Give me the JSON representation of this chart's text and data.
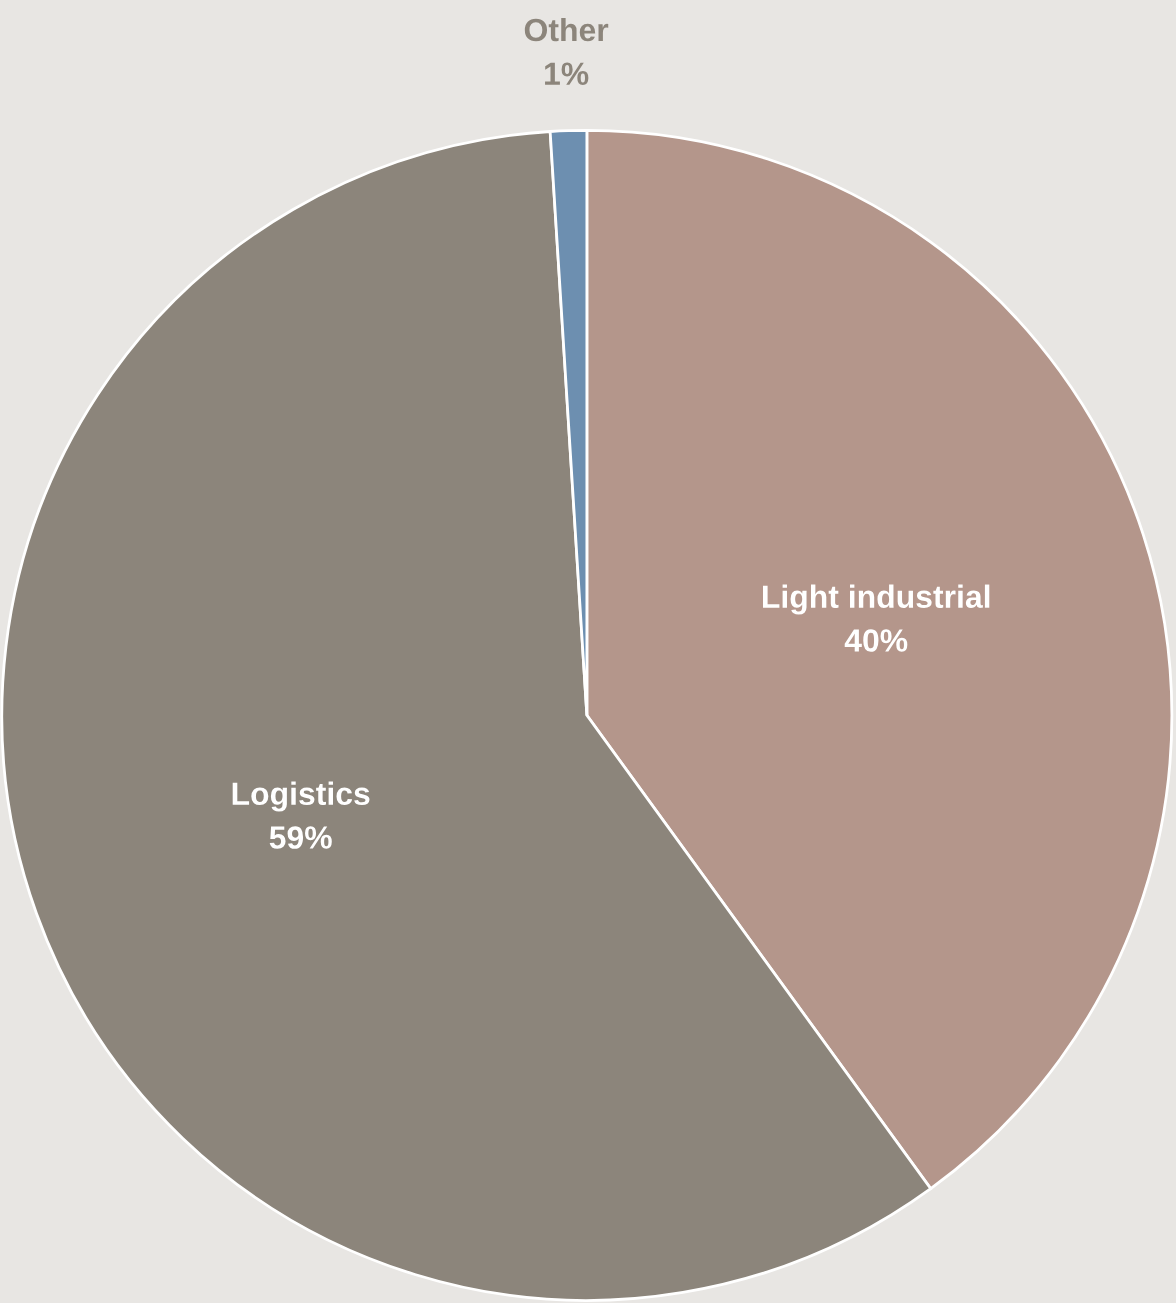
{
  "chart_data": {
    "type": "pie",
    "categories": [
      "Light industrial",
      "Logistics",
      "Other"
    ],
    "values": [
      40,
      59,
      1
    ],
    "value_labels": [
      "40%",
      "59%",
      "1%"
    ],
    "colors": [
      "#b4968b",
      "#8c857b",
      "#6d8fb0"
    ],
    "legend": false
  }
}
